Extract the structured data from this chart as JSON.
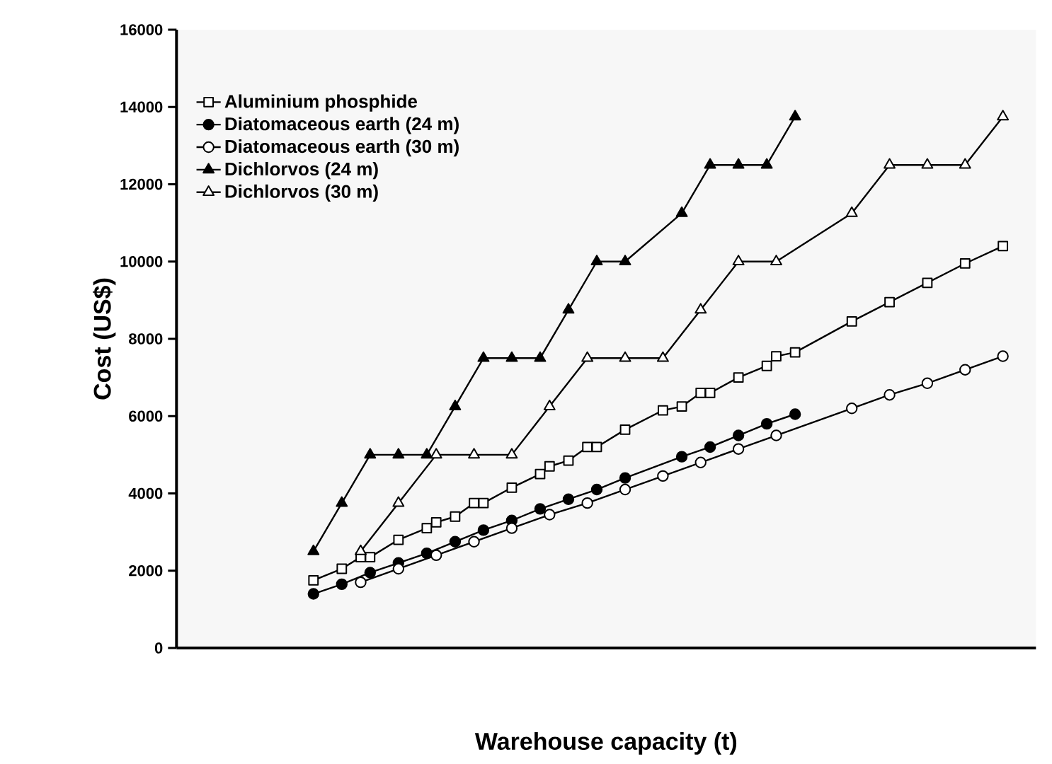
{
  "chart_data": {
    "type": "line",
    "xlabel": "Warehouse capacity (t)",
    "ylabel": "Cost (US$)",
    "categories": [
      null,
      null,
      null,
      null,
      null,
      null,
      null,
      null,
      null,
      null,
      null,
      null,
      null,
      null,
      null,
      null,
      null,
      null,
      null,
      null,
      null,
      null,
      null,
      null,
      null,
      null,
      null,
      null,
      null,
      null,
      null,
      null,
      null,
      null,
      null,
      null,
      null,
      null,
      null,
      null,
      null,
      null,
      null,
      null,
      null,
      null,
      null,
      null,
      null,
      null,
      null,
      null,
      null,
      null,
      null,
      null,
      null,
      null,
      null,
      null,
      null,
      null,
      null,
      null,
      null,
      null,
      null,
      null,
      null,
      null,
      null,
      null,
      null,
      null,
      null,
      null,
      null,
      null,
      null,
      null,
      null,
      null,
      null,
      null,
      null,
      null,
      null,
      null,
      null,
      null,
      null
    ],
    "ylim": [
      0,
      16000
    ],
    "yticks": [
      0,
      2000,
      4000,
      6000,
      8000,
      10000,
      12000,
      14000,
      16000
    ],
    "legend": "top left",
    "line_style": "solid",
    "series": [
      {
        "name": "Aluminium phosphide",
        "color": "#000000",
        "marker": "square-open",
        "values": [
          null,
          null,
          null,
          null,
          null,
          null,
          null,
          null,
          null,
          null,
          null,
          null,
          null,
          null,
          1750,
          null,
          null,
          2050,
          null,
          2350,
          2350,
          null,
          null,
          2800,
          null,
          null,
          3100,
          3250,
          null,
          3400,
          null,
          3750,
          3750,
          null,
          null,
          4150,
          null,
          null,
          4500,
          4700,
          null,
          4850,
          null,
          5200,
          5200,
          null,
          null,
          5650,
          null,
          null,
          null,
          6150,
          null,
          6250,
          null,
          6600,
          6600,
          null,
          null,
          7000,
          null,
          null,
          7300,
          7550,
          null,
          7650,
          null,
          null,
          null,
          null,
          null,
          8450,
          null,
          null,
          null,
          8950,
          null,
          null,
          null,
          9450,
          null,
          null,
          null,
          9950,
          null,
          null,
          null,
          10400,
          null,
          null,
          null
        ]
      },
      {
        "name": "Diatomaceous earth (24 m)",
        "color": "#000000",
        "marker": "circle",
        "values": [
          null,
          null,
          null,
          null,
          null,
          null,
          null,
          null,
          null,
          null,
          null,
          null,
          null,
          null,
          1400,
          null,
          null,
          1650,
          null,
          null,
          1950,
          null,
          null,
          2200,
          null,
          null,
          2450,
          null,
          null,
          2750,
          null,
          null,
          3050,
          null,
          null,
          3300,
          null,
          null,
          3600,
          null,
          null,
          3850,
          null,
          null,
          4100,
          null,
          null,
          4400,
          null,
          null,
          null,
          null,
          null,
          4950,
          null,
          null,
          5200,
          null,
          null,
          5500,
          null,
          null,
          5800,
          null,
          null,
          6050,
          null,
          null,
          null,
          null,
          null,
          null,
          null,
          null,
          null,
          null,
          null,
          null,
          null,
          null,
          null,
          null,
          null,
          null,
          null,
          null,
          null,
          null,
          null,
          null,
          null
        ]
      },
      {
        "name": "Diatomaceous earth (30 m)",
        "color": "#000000",
        "marker": "circle-open",
        "values": [
          null,
          null,
          null,
          null,
          null,
          null,
          null,
          null,
          null,
          null,
          null,
          null,
          null,
          null,
          null,
          null,
          null,
          null,
          null,
          1700,
          null,
          null,
          null,
          2050,
          null,
          null,
          null,
          2400,
          null,
          null,
          null,
          2750,
          null,
          null,
          null,
          3100,
          null,
          null,
          null,
          3450,
          null,
          null,
          null,
          3750,
          null,
          null,
          null,
          4100,
          null,
          null,
          null,
          4450,
          null,
          null,
          null,
          4800,
          null,
          null,
          null,
          5150,
          null,
          null,
          null,
          5500,
          null,
          null,
          null,
          null,
          null,
          null,
          null,
          6200,
          null,
          null,
          null,
          6550,
          null,
          null,
          null,
          6850,
          null,
          null,
          null,
          7200,
          null,
          null,
          null,
          7550,
          null,
          null,
          null
        ]
      },
      {
        "name": "Dichlorvos (24 m)",
        "color": "#000000",
        "marker": "triangle",
        "values": [
          null,
          null,
          null,
          null,
          null,
          null,
          null,
          null,
          null,
          null,
          null,
          null,
          null,
          null,
          2500,
          null,
          null,
          3750,
          null,
          null,
          5000,
          null,
          null,
          5000,
          null,
          null,
          5000,
          null,
          null,
          6250,
          null,
          null,
          7500,
          null,
          null,
          7500,
          null,
          null,
          7500,
          null,
          null,
          8750,
          null,
          null,
          10000,
          null,
          null,
          10000,
          null,
          null,
          null,
          null,
          null,
          11250,
          null,
          null,
          12500,
          null,
          null,
          12500,
          null,
          null,
          12500,
          null,
          null,
          13750,
          null,
          null,
          null,
          null,
          null,
          null,
          null,
          null,
          null,
          null,
          null,
          null,
          null,
          null,
          null,
          null,
          null,
          null,
          null,
          null,
          null,
          null,
          null,
          null,
          null
        ]
      },
      {
        "name": "Dichlorvos (30 m)",
        "color": "#000000",
        "marker": "triangle-open",
        "values": [
          null,
          null,
          null,
          null,
          null,
          null,
          null,
          null,
          null,
          null,
          null,
          null,
          null,
          null,
          null,
          null,
          null,
          null,
          null,
          2500,
          null,
          null,
          null,
          3750,
          null,
          null,
          null,
          5000,
          null,
          null,
          null,
          5000,
          null,
          null,
          null,
          5000,
          null,
          null,
          null,
          6250,
          null,
          null,
          null,
          7500,
          null,
          null,
          null,
          7500,
          null,
          null,
          null,
          7500,
          null,
          null,
          null,
          8750,
          null,
          null,
          null,
          10000,
          null,
          null,
          null,
          10000,
          null,
          null,
          null,
          null,
          null,
          null,
          null,
          11250,
          null,
          null,
          null,
          12500,
          null,
          null,
          null,
          12500,
          null,
          null,
          null,
          12500,
          null,
          null,
          null,
          13750,
          null,
          null,
          null
        ]
      }
    ]
  }
}
